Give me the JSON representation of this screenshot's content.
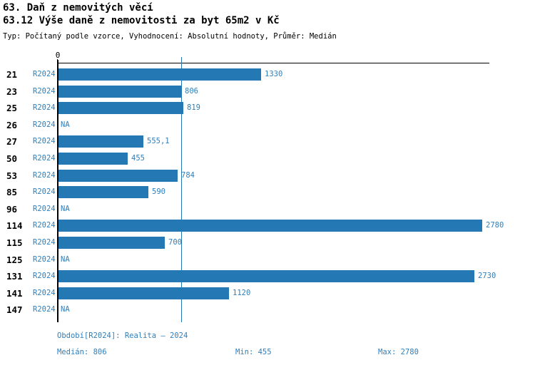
{
  "title": "63. Daň z nemovitých věcí",
  "subtitle": "63.12 Výše daně z nemovitosti za byt 65m2 v Kč",
  "meta": "Typ: Počítaný podle vzorce, Vyhodnocení: Absolutní hodnoty, Průměr: Medián",
  "colors": {
    "bar": "#2478b4",
    "blue_text": "#2e7fbc",
    "axis": "#000000"
  },
  "chart_data": {
    "type": "bar",
    "orientation": "horizontal",
    "title": "63.12 Výše daně z nemovitosti za byt 65m2 v Kč",
    "series_label": "R2024",
    "categories": [
      "21",
      "23",
      "25",
      "26",
      "27",
      "50",
      "53",
      "85",
      "96",
      "114",
      "115",
      "125",
      "131",
      "141",
      "147"
    ],
    "values": [
      1330,
      806,
      819,
      null,
      555.1,
      455,
      784,
      590,
      null,
      2780,
      700,
      null,
      2730,
      1120,
      null
    ],
    "value_labels": [
      "1330",
      "806",
      "819",
      "NA",
      "555,1",
      "455",
      "784",
      "590",
      "NA",
      "2780",
      "700",
      "NA",
      "2730",
      "1120",
      "NA"
    ],
    "na_label": "NA",
    "axis": {
      "zero_label": "0",
      "min": 0,
      "max": 2800
    },
    "median_value": 806,
    "grid": false,
    "legend": false
  },
  "footer": {
    "period": "Období[R2024]: Realita – 2024",
    "median": "Medián: 806",
    "min": "Min: 455",
    "max": "Max: 2780"
  }
}
